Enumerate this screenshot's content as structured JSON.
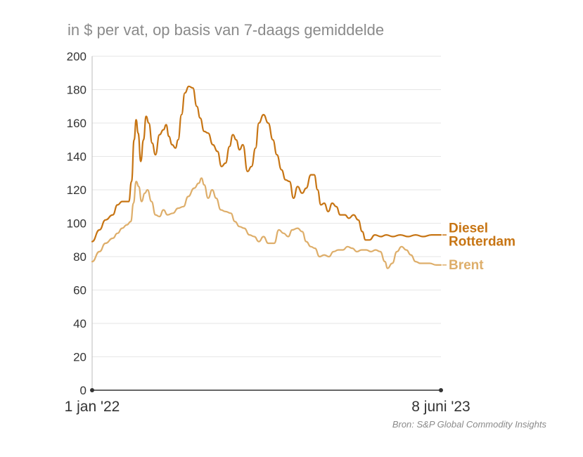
{
  "chart_data": {
    "type": "line",
    "subtitle": "in $ per vat, op basis van 7-daags gemiddelde",
    "source": "Bron: S&P Global Commodity Insights",
    "ylim": [
      0,
      200
    ],
    "yticks": [
      "0",
      "20",
      "40",
      "60",
      "80",
      "100",
      "120",
      "140",
      "160",
      "180",
      "200"
    ],
    "xticks": [
      "1 jan '22",
      "8 juni '23"
    ],
    "x_start": "2022-01-01",
    "x_end": "2023-06-08",
    "grid": true,
    "colors": {
      "diesel": "#c77514",
      "brent": "#deae6a",
      "grid": "#e6e6e6",
      "axis": "#333333"
    },
    "series": [
      {
        "name": "Diesel Rotterdam",
        "label_lines": [
          "Diesel",
          "Rotterdam"
        ],
        "points": [
          [
            "2022-01-01",
            89
          ],
          [
            "2022-01-12",
            96
          ],
          [
            "2022-01-21",
            102
          ],
          [
            "2022-02-01",
            105
          ],
          [
            "2022-02-08",
            111
          ],
          [
            "2022-02-15",
            113
          ],
          [
            "2022-02-25",
            113
          ],
          [
            "2022-03-01",
            125
          ],
          [
            "2022-03-05",
            150
          ],
          [
            "2022-03-08",
            162
          ],
          [
            "2022-03-11",
            154
          ],
          [
            "2022-03-15",
            137
          ],
          [
            "2022-03-19",
            150
          ],
          [
            "2022-03-23",
            164
          ],
          [
            "2022-03-27",
            160
          ],
          [
            "2022-04-01",
            148
          ],
          [
            "2022-04-06",
            141
          ],
          [
            "2022-04-12",
            153
          ],
          [
            "2022-04-18",
            156
          ],
          [
            "2022-04-22",
            159
          ],
          [
            "2022-04-26",
            152
          ],
          [
            "2022-05-01",
            147
          ],
          [
            "2022-05-06",
            145
          ],
          [
            "2022-05-10",
            150
          ],
          [
            "2022-05-15",
            165
          ],
          [
            "2022-05-20",
            178
          ],
          [
            "2022-05-26",
            182
          ],
          [
            "2022-06-01",
            181
          ],
          [
            "2022-06-07",
            170
          ],
          [
            "2022-06-12",
            163
          ],
          [
            "2022-06-18",
            155
          ],
          [
            "2022-06-24",
            154
          ],
          [
            "2022-07-01",
            147
          ],
          [
            "2022-07-08",
            143
          ],
          [
            "2022-07-14",
            134
          ],
          [
            "2022-07-20",
            136
          ],
          [
            "2022-07-26",
            146
          ],
          [
            "2022-07-31",
            153
          ],
          [
            "2022-08-05",
            150
          ],
          [
            "2022-08-10",
            144
          ],
          [
            "2022-08-15",
            147
          ],
          [
            "2022-08-22",
            131
          ],
          [
            "2022-08-28",
            134
          ],
          [
            "2022-09-03",
            145
          ],
          [
            "2022-09-08",
            160
          ],
          [
            "2022-09-15",
            165
          ],
          [
            "2022-09-22",
            160
          ],
          [
            "2022-09-29",
            150
          ],
          [
            "2022-10-05",
            141
          ],
          [
            "2022-10-12",
            132
          ],
          [
            "2022-10-18",
            126
          ],
          [
            "2022-10-24",
            125
          ],
          [
            "2022-10-30",
            115
          ],
          [
            "2022-11-05",
            122
          ],
          [
            "2022-11-12",
            118
          ],
          [
            "2022-11-18",
            121
          ],
          [
            "2022-11-25",
            129
          ],
          [
            "2022-11-30",
            129
          ],
          [
            "2022-12-05",
            120
          ],
          [
            "2022-12-10",
            111
          ],
          [
            "2022-12-15",
            112
          ],
          [
            "2022-12-21",
            107
          ],
          [
            "2022-12-27",
            112
          ],
          [
            "2023-01-02",
            110
          ],
          [
            "2023-01-08",
            105
          ],
          [
            "2023-01-15",
            105
          ],
          [
            "2023-01-21",
            103
          ],
          [
            "2023-01-28",
            105
          ],
          [
            "2023-02-04",
            102
          ],
          [
            "2023-02-10",
            95
          ],
          [
            "2023-02-15",
            90
          ],
          [
            "2023-02-21",
            90
          ],
          [
            "2023-03-01",
            93
          ],
          [
            "2023-03-10",
            92
          ],
          [
            "2023-03-18",
            93
          ],
          [
            "2023-03-28",
            92
          ],
          [
            "2023-04-08",
            93
          ],
          [
            "2023-04-20",
            92
          ],
          [
            "2023-05-01",
            93
          ],
          [
            "2023-05-12",
            92
          ],
          [
            "2023-05-25",
            93
          ],
          [
            "2023-06-08",
            93
          ]
        ]
      },
      {
        "name": "Brent",
        "label_lines": [
          "Brent"
        ],
        "points": [
          [
            "2022-01-01",
            77
          ],
          [
            "2022-01-12",
            83
          ],
          [
            "2022-01-21",
            88
          ],
          [
            "2022-02-01",
            91
          ],
          [
            "2022-02-08",
            94
          ],
          [
            "2022-02-15",
            97
          ],
          [
            "2022-02-22",
            99
          ],
          [
            "2022-02-28",
            101
          ],
          [
            "2022-03-04",
            112
          ],
          [
            "2022-03-08",
            125
          ],
          [
            "2022-03-12",
            122
          ],
          [
            "2022-03-16",
            113
          ],
          [
            "2022-03-21",
            118
          ],
          [
            "2022-03-25",
            120
          ],
          [
            "2022-03-31",
            113
          ],
          [
            "2022-04-06",
            105
          ],
          [
            "2022-04-12",
            104
          ],
          [
            "2022-04-18",
            108
          ],
          [
            "2022-04-24",
            105
          ],
          [
            "2022-05-02",
            106
          ],
          [
            "2022-05-10",
            109
          ],
          [
            "2022-05-18",
            110
          ],
          [
            "2022-05-25",
            116
          ],
          [
            "2022-06-03",
            121
          ],
          [
            "2022-06-10",
            124
          ],
          [
            "2022-06-14",
            127
          ],
          [
            "2022-06-18",
            123
          ],
          [
            "2022-06-24",
            115
          ],
          [
            "2022-06-30",
            120
          ],
          [
            "2022-07-06",
            115
          ],
          [
            "2022-07-13",
            108
          ],
          [
            "2022-07-20",
            107
          ],
          [
            "2022-07-28",
            106
          ],
          [
            "2022-08-03",
            101
          ],
          [
            "2022-08-10",
            98
          ],
          [
            "2022-08-17",
            97
          ],
          [
            "2022-08-25",
            93
          ],
          [
            "2022-09-01",
            92
          ],
          [
            "2022-09-08",
            89
          ],
          [
            "2022-09-15",
            92
          ],
          [
            "2022-09-22",
            88
          ],
          [
            "2022-10-01",
            88
          ],
          [
            "2022-10-08",
            96
          ],
          [
            "2022-10-15",
            94
          ],
          [
            "2022-10-22",
            92
          ],
          [
            "2022-10-28",
            96
          ],
          [
            "2022-11-05",
            97
          ],
          [
            "2022-11-12",
            95
          ],
          [
            "2022-11-18",
            89
          ],
          [
            "2022-11-25",
            86
          ],
          [
            "2022-12-01",
            85
          ],
          [
            "2022-12-08",
            80
          ],
          [
            "2022-12-15",
            81
          ],
          [
            "2022-12-22",
            80
          ],
          [
            "2022-12-29",
            83
          ],
          [
            "2023-01-05",
            84
          ],
          [
            "2023-01-12",
            84
          ],
          [
            "2023-01-19",
            86
          ],
          [
            "2023-01-26",
            85
          ],
          [
            "2023-02-02",
            83
          ],
          [
            "2023-02-09",
            84
          ],
          [
            "2023-02-16",
            84
          ],
          [
            "2023-02-23",
            83
          ],
          [
            "2023-03-02",
            84
          ],
          [
            "2023-03-09",
            83
          ],
          [
            "2023-03-16",
            77
          ],
          [
            "2023-03-20",
            73
          ],
          [
            "2023-03-27",
            76
          ],
          [
            "2023-04-03",
            83
          ],
          [
            "2023-04-10",
            86
          ],
          [
            "2023-04-17",
            84
          ],
          [
            "2023-04-24",
            81
          ],
          [
            "2023-05-01",
            77
          ],
          [
            "2023-05-08",
            76
          ],
          [
            "2023-05-15",
            76
          ],
          [
            "2023-05-22",
            76
          ],
          [
            "2023-06-01",
            75
          ],
          [
            "2023-06-08",
            75
          ]
        ]
      }
    ]
  }
}
